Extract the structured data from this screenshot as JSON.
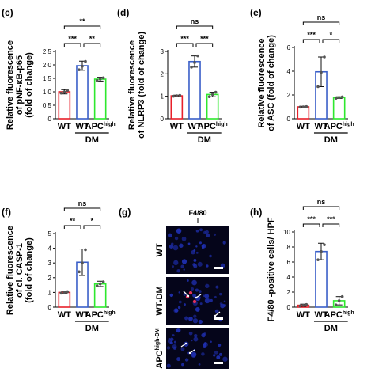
{
  "chart_data": [
    {
      "panel": "(c)",
      "type": "bar",
      "categories": [
        "WT",
        "WT",
        "APC^high"
      ],
      "group_label": "DM",
      "ylabel": [
        "Relative fluorescence",
        "of pNF-κB-p65",
        "(fold of change)"
      ],
      "ylim": [
        0,
        2.5
      ],
      "yticks": [
        "0",
        "0.5",
        "1.0",
        "1.5",
        "2.0",
        "2.5"
      ],
      "tick_values": [
        0,
        0.5,
        1.0,
        1.5,
        2.0,
        2.5
      ],
      "values": [
        1.0,
        1.97,
        1.47
      ],
      "errors": [
        0.08,
        0.17,
        0.07
      ],
      "points": [
        [
          0.95,
          1.0,
          1.05
        ],
        [
          1.82,
          1.95,
          2.13
        ],
        [
          1.42,
          1.47,
          1.52
        ]
      ],
      "colors": [
        "#e8202a",
        "#3a5fc8",
        "#2ee82e"
      ],
      "significance": [
        {
          "pair": [
            0,
            1
          ],
          "label": "***",
          "level": 1
        },
        {
          "pair": [
            1,
            2
          ],
          "label": "**",
          "level": 1
        },
        {
          "pair": [
            0,
            2
          ],
          "label": "**",
          "level": 2
        }
      ]
    },
    {
      "panel": "(d)",
      "type": "bar",
      "categories": [
        "WT",
        "WT",
        "APC^high"
      ],
      "group_label": "DM",
      "ylabel": [
        "Relative fluorescence",
        "of NLRP3 (fold of change)"
      ],
      "ylim": [
        0,
        3
      ],
      "yticks": [
        "0",
        "1",
        "2",
        "3"
      ],
      "tick_values": [
        0,
        1,
        2,
        3
      ],
      "values": [
        1.02,
        2.55,
        1.08
      ],
      "errors": [
        0.03,
        0.25,
        0.1
      ],
      "points": [
        [
          1.0,
          1.02,
          1.04
        ],
        [
          2.3,
          2.5,
          2.8
        ],
        [
          0.98,
          1.08,
          1.18
        ]
      ],
      "colors": [
        "#e8202a",
        "#3a5fc8",
        "#2ee82e"
      ],
      "significance": [
        {
          "pair": [
            0,
            1
          ],
          "label": "***",
          "level": 1
        },
        {
          "pair": [
            1,
            2
          ],
          "label": "***",
          "level": 1
        },
        {
          "pair": [
            0,
            2
          ],
          "label": "ns",
          "level": 2
        }
      ]
    },
    {
      "panel": "(e)",
      "type": "bar",
      "categories": [
        "WT",
        "WT",
        "APC^high"
      ],
      "group_label": "DM",
      "ylabel": [
        "Relative fluorescence",
        "of ASC (fold of change)"
      ],
      "ylim": [
        0,
        6
      ],
      "yticks": [
        "0",
        "2",
        "4",
        "6"
      ],
      "tick_values": [
        0,
        2,
        4,
        6
      ],
      "values": [
        1.0,
        3.95,
        1.78
      ],
      "errors": [
        0.05,
        1.25,
        0.07
      ],
      "points": [
        [
          0.98,
          1.0,
          1.02
        ],
        [
          2.7,
          3.9,
          5.2
        ],
        [
          1.72,
          1.78,
          1.84
        ]
      ],
      "colors": [
        "#e8202a",
        "#3a5fc8",
        "#2ee82e"
      ],
      "significance": [
        {
          "pair": [
            0,
            1
          ],
          "label": "***",
          "level": 1
        },
        {
          "pair": [
            1,
            2
          ],
          "label": "*",
          "level": 1
        },
        {
          "pair": [
            0,
            2
          ],
          "label": "ns",
          "level": 2
        }
      ]
    },
    {
      "panel": "(f)",
      "type": "bar",
      "categories": [
        "WT",
        "WT",
        "APC^high"
      ],
      "group_label": "DM",
      "ylabel": [
        "Relative fluorescence",
        "of cl. CASP-1",
        "(fold of change)"
      ],
      "ylim": [
        0,
        5
      ],
      "yticks": [
        "0",
        "1",
        "2",
        "3",
        "4",
        "5"
      ],
      "tick_values": [
        0,
        1,
        2,
        3,
        4,
        5
      ],
      "values": [
        1.0,
        3.05,
        1.58
      ],
      "errors": [
        0.08,
        0.9,
        0.18
      ],
      "points": [
        [
          0.95,
          1.0,
          1.05
        ],
        [
          2.4,
          3.0,
          3.9
        ],
        [
          1.45,
          1.58,
          1.72
        ]
      ],
      "colors": [
        "#e8202a",
        "#3a5fc8",
        "#2ee82e"
      ],
      "significance": [
        {
          "pair": [
            0,
            1
          ],
          "label": "**",
          "level": 1
        },
        {
          "pair": [
            1,
            2
          ],
          "label": "*",
          "level": 1
        },
        {
          "pair": [
            0,
            2
          ],
          "label": "ns",
          "level": 2
        }
      ]
    },
    {
      "panel": "(h)",
      "type": "bar",
      "categories": [
        "WT",
        "WT",
        "APC^high"
      ],
      "group_label": "DM",
      "ylabel": [
        "F4/80 -positive cells/ HPF"
      ],
      "ylim": [
        0,
        10
      ],
      "yticks": [
        "0",
        "2",
        "4",
        "6",
        "8",
        "10"
      ],
      "tick_values": [
        0,
        2,
        4,
        6,
        8,
        10
      ],
      "values": [
        0.25,
        7.4,
        0.85
      ],
      "errors": [
        0.15,
        1.1,
        0.55
      ],
      "points": [
        [
          0.15,
          0.25,
          0.35
        ],
        [
          6.3,
          7.4,
          8.3
        ],
        [
          0.3,
          0.85,
          1.4
        ]
      ],
      "colors": [
        "#e8202a",
        "#3a5fc8",
        "#2ee82e"
      ],
      "significance": [
        {
          "pair": [
            0,
            1
          ],
          "label": "***",
          "level": 1
        },
        {
          "pair": [
            1,
            2
          ],
          "label": "***",
          "level": 1
        },
        {
          "pair": [
            0,
            2
          ],
          "label": "ns",
          "level": 2
        }
      ]
    }
  ],
  "microscopy": {
    "panel": "(g)",
    "title": "F4/80",
    "rows": [
      "WT",
      "WT-DM",
      "APC^high-DM"
    ]
  }
}
